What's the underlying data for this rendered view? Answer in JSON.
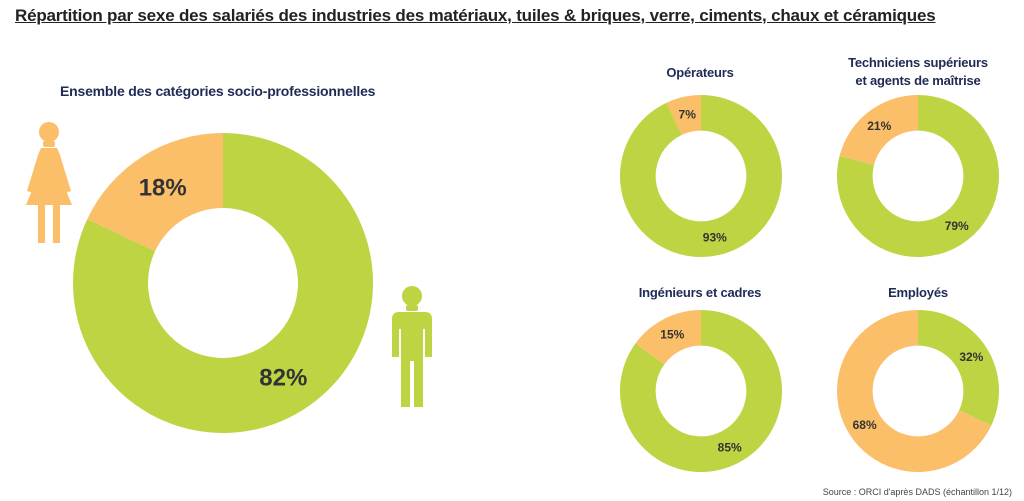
{
  "title": "Répartition par sexe des salariés des industries des matériaux, tuiles & briques, verre, ciments, chaux et céramiques",
  "source": "Source : ORCI d'après DADS (échantillon 1/12)",
  "colors": {
    "women": "#fbbf6a",
    "men": "#bfd443",
    "label": "#333333",
    "icon_women": "#fbbf6a",
    "icon_men": "#bfd443"
  },
  "icons": {
    "women": "woman-icon",
    "men": "man-icon"
  },
  "chart_data": [
    {
      "type": "pie",
      "id": "main",
      "title": "Ensemble des catégories socio-professionnelles",
      "slices": [
        {
          "key": "men",
          "value": 82,
          "label": "82%"
        },
        {
          "key": "women",
          "value": 18,
          "label": "18%"
        }
      ]
    },
    {
      "type": "pie",
      "id": "op",
      "title": "Opérateurs",
      "slices": [
        {
          "key": "men",
          "value": 93,
          "label": "93%"
        },
        {
          "key": "women",
          "value": 7,
          "label": "7%"
        }
      ]
    },
    {
      "type": "pie",
      "id": "tech",
      "title": "Techniciens supérieurs et agents de maîtrise",
      "title_lines": [
        "Techniciens supérieurs",
        "et agents de maîtrise"
      ],
      "slices": [
        {
          "key": "men",
          "value": 79,
          "label": "79%"
        },
        {
          "key": "women",
          "value": 21,
          "label": "21%"
        }
      ]
    },
    {
      "type": "pie",
      "id": "ing",
      "title": "Ingénieurs et cadres",
      "slices": [
        {
          "key": "men",
          "value": 85,
          "label": "85%"
        },
        {
          "key": "women",
          "value": 15,
          "label": "15%"
        }
      ]
    },
    {
      "type": "pie",
      "id": "emp",
      "title": "Employés",
      "slices": [
        {
          "key": "men",
          "value": 32,
          "label": "32%"
        },
        {
          "key": "women",
          "value": 68,
          "label": "68%"
        }
      ]
    }
  ]
}
